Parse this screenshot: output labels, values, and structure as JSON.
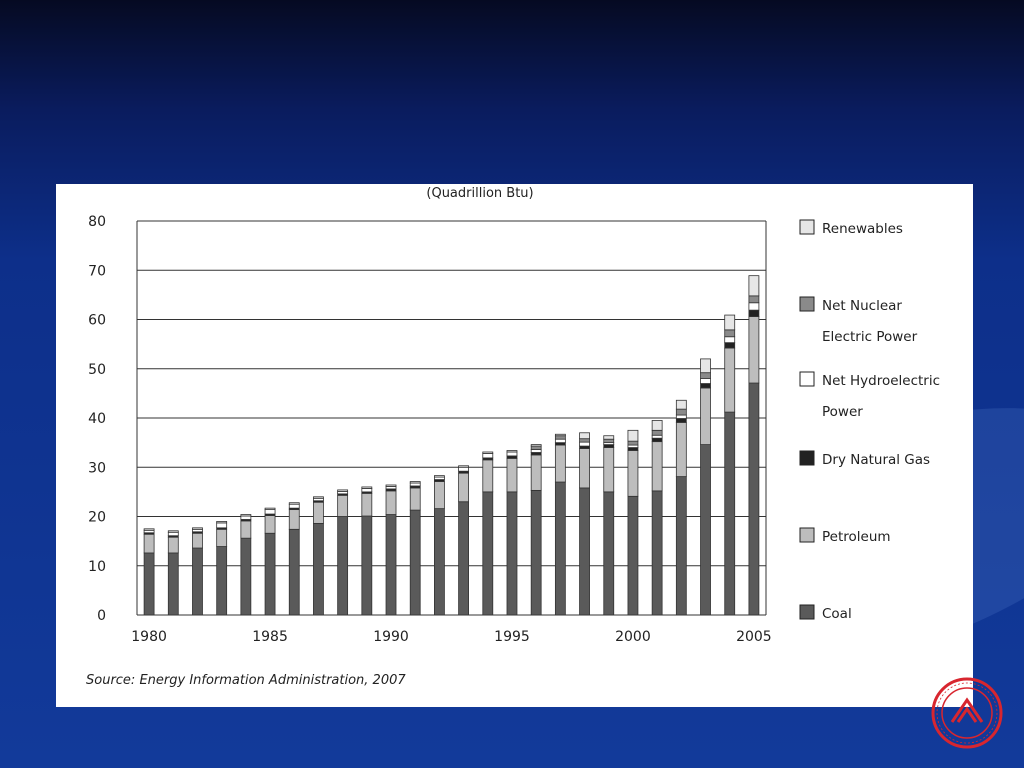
{
  "chart_data": {
    "type": "bar",
    "stacked": true,
    "title": "(Quadrillion Btu)",
    "xlabel": "",
    "ylabel": "",
    "ylim": [
      0,
      80
    ],
    "yticks": [
      "0",
      "10",
      "20",
      "30",
      "40",
      "50",
      "60",
      "70",
      "80"
    ],
    "xtick_labels": [
      "1980",
      "1985",
      "1990",
      "1995",
      "2000",
      "2005"
    ],
    "categories": [
      "1980",
      "1981",
      "1982",
      "1983",
      "1984",
      "1985",
      "1986",
      "1987",
      "1988",
      "1989",
      "1990",
      "1991",
      "1992",
      "1993",
      "1994",
      "1995",
      "1996",
      "1997",
      "1998",
      "1999",
      "2000",
      "2001",
      "2002",
      "2003",
      "2004",
      "2005"
    ],
    "grid": true,
    "legend_position": "right",
    "series": [
      {
        "name": "Coal",
        "color": "#5a5a5a",
        "values": [
          12.6,
          12.6,
          13.6,
          13.9,
          15.6,
          16.6,
          17.4,
          18.6,
          20.0,
          20.1,
          20.4,
          21.3,
          21.6,
          23.0,
          25.0,
          25.0,
          25.3,
          27.0,
          25.8,
          25.0,
          24.1,
          25.2,
          28.1,
          34.6,
          41.2,
          47.1
        ]
      },
      {
        "name": "Petroleum",
        "color": "#bdbdbd",
        "values": [
          3.8,
          3.2,
          3.0,
          3.5,
          3.5,
          3.6,
          4.0,
          4.3,
          4.3,
          4.6,
          4.8,
          4.5,
          5.5,
          5.8,
          6.5,
          6.8,
          7.2,
          7.5,
          8.0,
          9.0,
          9.3,
          10.0,
          11.0,
          11.5,
          13.0,
          13.5
        ]
      },
      {
        "name": "Dry Natural Gas",
        "color": "#222222",
        "values": [
          0.3,
          0.3,
          0.3,
          0.3,
          0.3,
          0.3,
          0.3,
          0.3,
          0.3,
          0.3,
          0.4,
          0.4,
          0.4,
          0.4,
          0.4,
          0.5,
          0.5,
          0.5,
          0.5,
          0.6,
          0.6,
          0.7,
          0.8,
          0.9,
          1.1,
          1.3
        ]
      },
      {
        "name": "Net Hydroelectric Power",
        "color": "#ffffff",
        "values": [
          0.5,
          0.7,
          0.5,
          1.0,
          0.7,
          0.9,
          0.8,
          0.5,
          0.5,
          0.7,
          0.5,
          0.6,
          0.5,
          0.8,
          0.9,
          0.8,
          0.6,
          0.7,
          0.8,
          0.4,
          0.5,
          0.6,
          0.7,
          1.0,
          1.2,
          1.5
        ]
      },
      {
        "name": "Net Nuclear Electric Power",
        "color": "#8a8a8a",
        "values": [
          0,
          0,
          0,
          0,
          0,
          0,
          0,
          0,
          0,
          0,
          0,
          0,
          0,
          0,
          0,
          0,
          0.7,
          0.7,
          0.7,
          0.7,
          0.8,
          1.0,
          1.2,
          1.2,
          1.4,
          1.4
        ]
      },
      {
        "name": "Renewables",
        "color": "#e6e6e6",
        "values": [
          0.3,
          0.3,
          0.3,
          0.3,
          0.3,
          0.3,
          0.3,
          0.3,
          0.3,
          0.3,
          0.3,
          0.3,
          0.3,
          0.3,
          0.3,
          0.3,
          0.3,
          0.3,
          1.2,
          0.7,
          2.2,
          2.0,
          1.8,
          2.8,
          3.0,
          4.1
        ]
      }
    ],
    "source": "Source: Energy Information Administration, 2007"
  },
  "colors": {
    "slide_background": "#0d2f8a",
    "seal_red": "#d8262f"
  },
  "icons": {
    "seal": "university-seal-icon"
  }
}
